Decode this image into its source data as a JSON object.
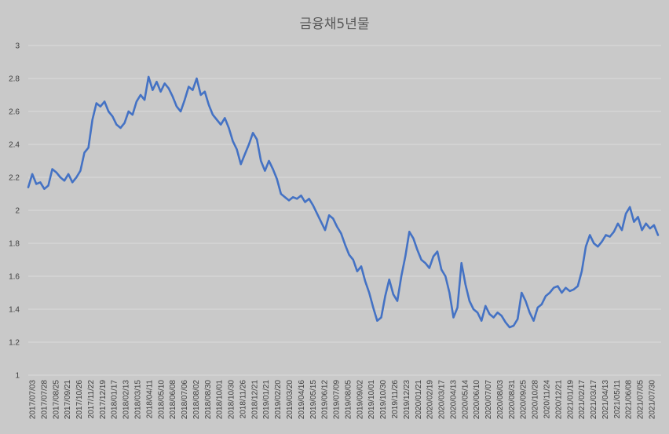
{
  "chart_data": {
    "type": "line",
    "title": "금융채5년물",
    "xlabel": "",
    "ylabel": "",
    "ylim": [
      1,
      3
    ],
    "yticks": [
      1,
      1.2,
      1.4,
      1.6,
      1.8,
      2,
      2.2,
      2.4,
      2.6,
      2.8,
      3
    ],
    "grid": true,
    "legend": "none",
    "line_color": "#4472c4",
    "background_color": "#c9c9c9",
    "x_tick_labels": [
      "2017/07/03",
      "2017/07/28",
      "2017/08/25",
      "2017/09/21",
      "2017/10/26",
      "2017/11/22",
      "2017/12/19",
      "2018/01/17",
      "2018/02/13",
      "2018/03/15",
      "2018/04/11",
      "2018/05/10",
      "2018/06/08",
      "2018/07/06",
      "2018/08/02",
      "2018/08/30",
      "2018/10/01",
      "2018/10/30",
      "2018/11/26",
      "2018/12/21",
      "2019/01/21",
      "2019/02/20",
      "2019/03/20",
      "2019/04/16",
      "2019/05/15",
      "2019/06/12",
      "2019/07/09",
      "2019/08/05",
      "2019/09/02",
      "2019/10/01",
      "2019/10/30",
      "2019/11/26",
      "2019/12/23",
      "2020/01/21",
      "2020/02/19",
      "2020/03/17",
      "2020/04/13",
      "2020/05/14",
      "2020/06/10",
      "2020/07/07",
      "2020/08/03",
      "2020/08/31",
      "2020/09/25",
      "2020/10/28",
      "2020/11/24",
      "2020/12/21",
      "2021/01/19",
      "2021/02/17",
      "2021/03/17",
      "2021/04/13",
      "2021/05/11",
      "2021/06/08",
      "2021/07/05",
      "2021/07/30"
    ],
    "series": [
      {
        "values": [
          2.14,
          2.22,
          2.16,
          2.17,
          2.13,
          2.15,
          2.25,
          2.23,
          2.2,
          2.18,
          2.22,
          2.17,
          2.2,
          2.24,
          2.35,
          2.38,
          2.55,
          2.65,
          2.63,
          2.66,
          2.6,
          2.57,
          2.52,
          2.5,
          2.53,
          2.6,
          2.58,
          2.66,
          2.7,
          2.67,
          2.81,
          2.73,
          2.78,
          2.72,
          2.77,
          2.74,
          2.69,
          2.63,
          2.6,
          2.67,
          2.75,
          2.73,
          2.8,
          2.7,
          2.72,
          2.64,
          2.58,
          2.55,
          2.52,
          2.56,
          2.5,
          2.42,
          2.37,
          2.28,
          2.34,
          2.4,
          2.47,
          2.43,
          2.3,
          2.24,
          2.3,
          2.25,
          2.19,
          2.1,
          2.08,
          2.06,
          2.08,
          2.07,
          2.09,
          2.05,
          2.07,
          2.03,
          1.98,
          1.93,
          1.88,
          1.97,
          1.95,
          1.9,
          1.86,
          1.79,
          1.73,
          1.7,
          1.63,
          1.66,
          1.57,
          1.5,
          1.41,
          1.33,
          1.35,
          1.48,
          1.58,
          1.49,
          1.45,
          1.6,
          1.72,
          1.87,
          1.83,
          1.76,
          1.7,
          1.68,
          1.65,
          1.72,
          1.75,
          1.64,
          1.6,
          1.5,
          1.35,
          1.41,
          1.68,
          1.55,
          1.45,
          1.4,
          1.38,
          1.33,
          1.42,
          1.37,
          1.35,
          1.38,
          1.36,
          1.32,
          1.29,
          1.3,
          1.34,
          1.5,
          1.45,
          1.38,
          1.33,
          1.41,
          1.43,
          1.48,
          1.5,
          1.53,
          1.54,
          1.5,
          1.53,
          1.51,
          1.52,
          1.54,
          1.63,
          1.78,
          1.85,
          1.8,
          1.78,
          1.81,
          1.85,
          1.84,
          1.87,
          1.92,
          1.88,
          1.98,
          2.02,
          1.93,
          1.96,
          1.88,
          1.92,
          1.89,
          1.91,
          1.85
        ]
      }
    ]
  }
}
